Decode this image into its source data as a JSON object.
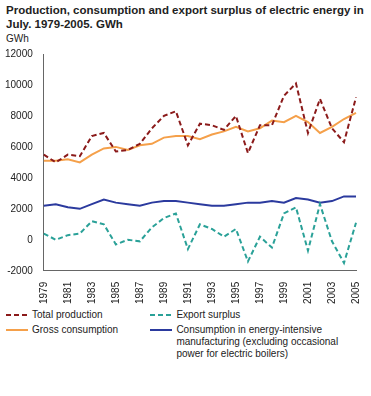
{
  "chart_data": {
    "type": "line",
    "title": "Production, consumption and export surplus of electric energy in July. 1979-2005. GWh",
    "y_label": "GWh",
    "categories": [
      "1979",
      null,
      "1981",
      null,
      "1983",
      null,
      "1985",
      null,
      "1987",
      null,
      "1989",
      null,
      "1991",
      null,
      "1993",
      null,
      "1995",
      null,
      "1997",
      null,
      "1999",
      null,
      "2001",
      null,
      "2003",
      null,
      "2005"
    ],
    "series": [
      {
        "name": "Total production",
        "color": "#8b1a1a",
        "line_style": "dashed",
        "values": [
          5500,
          5000,
          5500,
          5400,
          6700,
          6900,
          5700,
          5800,
          6200,
          7200,
          8000,
          8300,
          6100,
          7500,
          7400,
          7100,
          8000,
          5600,
          7400,
          7400,
          9300,
          10100,
          6900,
          9100,
          7200,
          6300,
          9200
        ]
      },
      {
        "name": "Export surplus",
        "color": "#2aa198",
        "line_style": "dashed",
        "values": [
          400,
          0,
          300,
          400,
          1200,
          1000,
          -300,
          0,
          -100,
          800,
          1400,
          1700,
          -600,
          1000,
          700,
          200,
          700,
          -1400,
          200,
          -500,
          1700,
          2100,
          -700,
          2300,
          -100,
          -1500,
          1100
        ]
      },
      {
        "name": "Gross consumption",
        "color": "#f5a04a",
        "line_style": "solid",
        "values": [
          5100,
          5100,
          5200,
          5000,
          5500,
          5900,
          6000,
          5800,
          6100,
          6200,
          6600,
          6700,
          6700,
          6500,
          6800,
          7000,
          7300,
          7000,
          7200,
          7700,
          7600,
          8000,
          7600,
          6900,
          7300,
          7800,
          8200
        ]
      },
      {
        "name": "Consumption in energy-intensive manufacturing (excluding occasional power for electric boilers)",
        "color": "#2b3a9e",
        "line_style": "solid",
        "values": [
          2200,
          2300,
          2100,
          2000,
          2300,
          2600,
          2400,
          2300,
          2200,
          2400,
          2500,
          2500,
          2400,
          2300,
          2200,
          2200,
          2300,
          2400,
          2400,
          2500,
          2400,
          2700,
          2600,
          2400,
          2500,
          2800,
          2800
        ]
      }
    ],
    "ylim": [
      -2000,
      12000
    ],
    "yticks": [
      -2000,
      0,
      2000,
      4000,
      6000,
      8000,
      10000,
      12000
    ],
    "grid": false,
    "legend": "bottom"
  }
}
